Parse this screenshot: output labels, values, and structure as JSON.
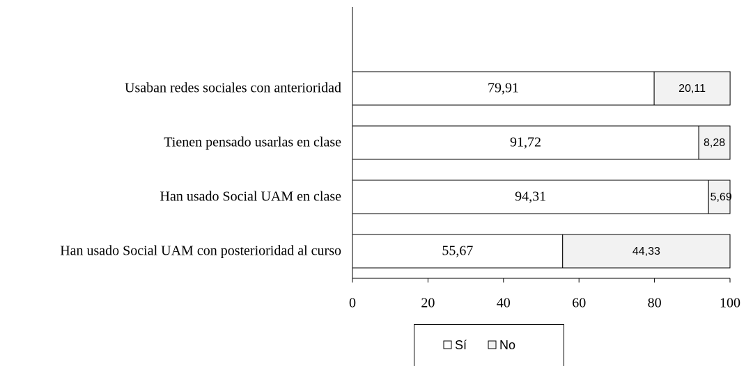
{
  "chart_data": {
    "type": "stacked-barh",
    "categories": [
      "Usaban redes sociales con anterioridad",
      "Tienen pensado usarlas en clase",
      "Han usado Social UAM en clase",
      "Han usado Social UAM con posterioridad al curso"
    ],
    "series": [
      {
        "name": "Sí",
        "color": "#ffffff",
        "values": [
          79.91,
          91.72,
          94.31,
          55.67
        ],
        "value_labels": [
          "79,91",
          "91,72",
          "94,31",
          "55,67"
        ]
      },
      {
        "name": "No",
        "color": "#f2f2f2",
        "values": [
          20.11,
          8.28,
          5.69,
          44.33
        ],
        "value_labels": [
          "20,11",
          "8,28",
          "5,69",
          "44,33"
        ]
      }
    ],
    "xlim": [
      0,
      100
    ],
    "xticks": [
      0,
      20,
      40,
      60,
      80,
      100
    ],
    "legend": "bottom"
  }
}
